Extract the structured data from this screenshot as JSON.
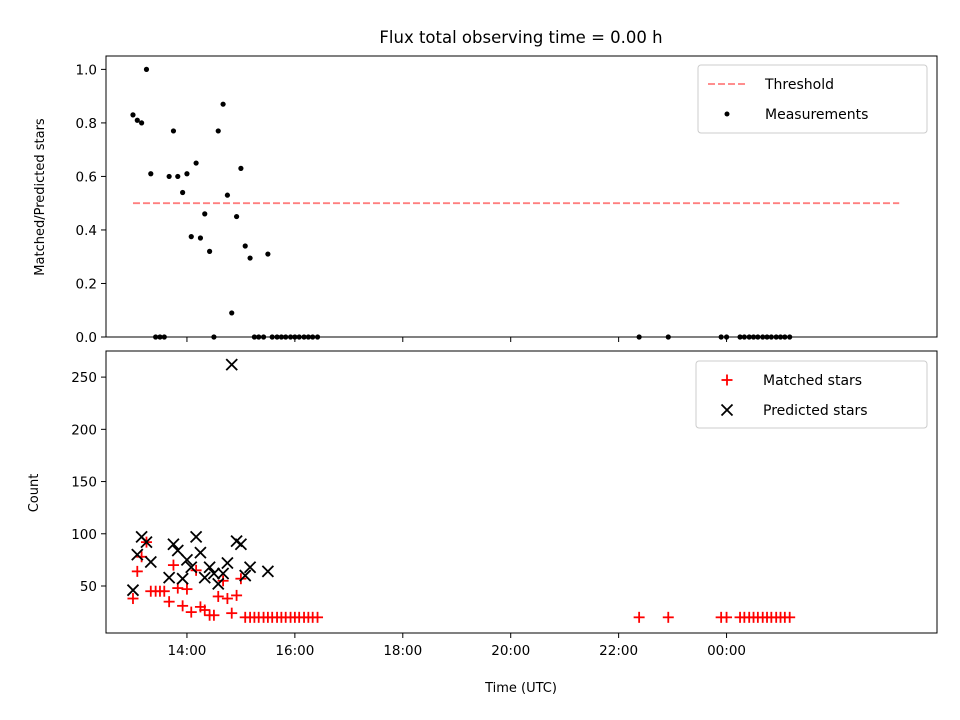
{
  "figure": {
    "title": "Flux total observing time = 0.00 h"
  },
  "chart_data": [
    {
      "type": "scatter",
      "panel": "top",
      "ylabel": "Matched/Predicted stars",
      "xlim": [
        12.5,
        27.9
      ],
      "ylim": [
        0,
        1.05
      ],
      "yticks": [
        0.0,
        0.2,
        0.4,
        0.6,
        0.8,
        1.0
      ],
      "yticklabels": [
        "0.0",
        "0.2",
        "0.4",
        "0.6",
        "0.8",
        "1.0"
      ],
      "legend": {
        "placement": "upper-right",
        "entries": [
          "Threshold",
          "Measurements"
        ]
      },
      "colors": {
        "threshold": "#ff7f7f",
        "measurements": "#000000"
      },
      "threshold": {
        "name": "Threshold",
        "x": [
          13.0,
          27.2
        ],
        "y": [
          0.5,
          0.5
        ]
      },
      "measurements": {
        "name": "Measurements",
        "x": [
          13.0,
          13.08,
          13.16,
          13.25,
          13.33,
          13.42,
          13.5,
          13.58,
          13.67,
          13.75,
          13.83,
          13.92,
          14.0,
          14.08,
          14.17,
          14.25,
          14.33,
          14.42,
          14.5,
          14.58,
          14.67,
          14.75,
          14.83,
          14.92,
          15.0,
          15.08,
          15.17,
          15.25,
          15.33,
          15.42,
          15.5,
          15.58,
          15.67,
          15.75,
          15.83,
          15.92,
          16.0,
          16.08,
          16.17,
          16.25,
          16.33,
          16.42,
          22.38,
          22.92,
          23.9,
          24.0,
          24.25,
          24.33,
          24.42,
          24.5,
          24.58,
          24.67,
          24.75,
          24.83,
          24.92,
          25.0,
          25.08,
          25.17
        ],
        "y": [
          0.83,
          0.81,
          0.8,
          1.0,
          0.61,
          0.0,
          0.0,
          0.0,
          0.6,
          0.77,
          0.6,
          0.54,
          0.61,
          0.375,
          0.65,
          0.37,
          0.46,
          0.32,
          0.0,
          0.77,
          0.87,
          0.53,
          0.09,
          0.45,
          0.63,
          0.34,
          0.295,
          0.0,
          0.0,
          0.0,
          0.31,
          0.0,
          0.0,
          0.0,
          0.0,
          0.0,
          0.0,
          0.0,
          0.0,
          0.0,
          0.0,
          0.0,
          0.0,
          0.0,
          0.0,
          0.0,
          0.0,
          0.0,
          0.0,
          0.0,
          0.0,
          0.0,
          0.0,
          0.0,
          0.0,
          0.0,
          0.0,
          0.0
        ]
      }
    },
    {
      "type": "scatter",
      "panel": "bottom",
      "xlabel": "Time (UTC)",
      "ylabel": "Count",
      "xlim": [
        12.5,
        27.9
      ],
      "ylim": [
        5,
        275
      ],
      "yticks": [
        50,
        100,
        150,
        200,
        250
      ],
      "yticklabels": [
        "50",
        "100",
        "150",
        "200",
        "250"
      ],
      "xticks": [
        14,
        16,
        18,
        20,
        22,
        24
      ],
      "xticklabels": [
        "14:00",
        "16:00",
        "18:00",
        "20:00",
        "22:00",
        "00:00"
      ],
      "legend": {
        "placement": "upper-right",
        "entries": [
          "Matched stars",
          "Predicted stars"
        ]
      },
      "colors": {
        "matched": "#ff0000",
        "predicted": "#000000"
      },
      "matched": {
        "name": "Matched stars",
        "x": [
          13.0,
          13.08,
          13.16,
          13.25,
          13.33,
          13.42,
          13.5,
          13.58,
          13.67,
          13.75,
          13.83,
          13.92,
          14.0,
          14.08,
          14.17,
          14.25,
          14.33,
          14.42,
          14.5,
          14.58,
          14.67,
          14.75,
          14.83,
          14.92,
          15.0,
          15.08,
          15.17,
          15.25,
          15.33,
          15.42,
          15.5,
          15.58,
          15.67,
          15.75,
          15.83,
          15.92,
          16.0,
          16.08,
          16.17,
          16.25,
          16.33,
          16.42,
          22.38,
          22.92,
          23.9,
          24.0,
          24.25,
          24.33,
          24.42,
          24.5,
          24.58,
          24.67,
          24.75,
          24.83,
          24.92,
          25.0,
          25.08,
          25.17
        ],
        "y": [
          38,
          64,
          78,
          92,
          45,
          45,
          45,
          45,
          35,
          70,
          48,
          31,
          47,
          25,
          65,
          30,
          27,
          22,
          22,
          40,
          55,
          38,
          24,
          41,
          57,
          20,
          20,
          20,
          20,
          20,
          20,
          20,
          20,
          20,
          20,
          20,
          20,
          20,
          20,
          20,
          20,
          20,
          20,
          20,
          20,
          20,
          20,
          20,
          20,
          20,
          20,
          20,
          20,
          20,
          20,
          20,
          20,
          20
        ]
      },
      "predicted": {
        "name": "Predicted stars",
        "x": [
          13.0,
          13.08,
          13.16,
          13.25,
          13.33,
          13.67,
          13.75,
          13.83,
          13.92,
          14.0,
          14.08,
          14.17,
          14.25,
          14.33,
          14.42,
          14.5,
          14.58,
          14.67,
          14.75,
          14.83,
          14.92,
          15.0,
          15.08,
          15.17,
          15.5
        ],
        "y": [
          46,
          80,
          97,
          92,
          73,
          58,
          90,
          84,
          57,
          75,
          68,
          97,
          82,
          58,
          68,
          62,
          52,
          62,
          72,
          262,
          93,
          90,
          60,
          68,
          64
        ]
      }
    }
  ]
}
